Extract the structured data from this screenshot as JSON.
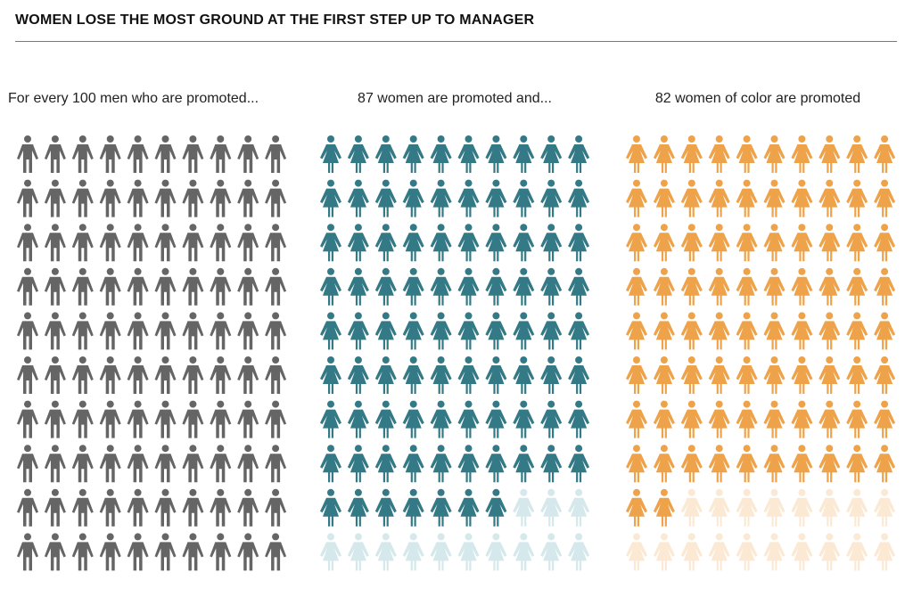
{
  "title": "WOMEN LOSE THE MOST GROUND AT THE FIRST STEP UP TO MANAGER",
  "chart_data": {
    "type": "pictograph",
    "total_per_group": 100,
    "grid": {
      "rows": 10,
      "columns": 10
    },
    "groups": [
      {
        "label": "For every 100 men who are promoted...",
        "value": 100,
        "icon": "man-icon",
        "color": "#656565",
        "faded_color": "#d9d9d9"
      },
      {
        "label": "87 women are promoted and...",
        "value": 87,
        "icon": "woman-icon",
        "color": "#347a86",
        "faded_color": "#d5e8eb"
      },
      {
        "label": "82 women of color are promoted",
        "value": 82,
        "icon": "woman-icon",
        "color": "#eea249",
        "faded_color": "#fbe9d4"
      }
    ]
  }
}
